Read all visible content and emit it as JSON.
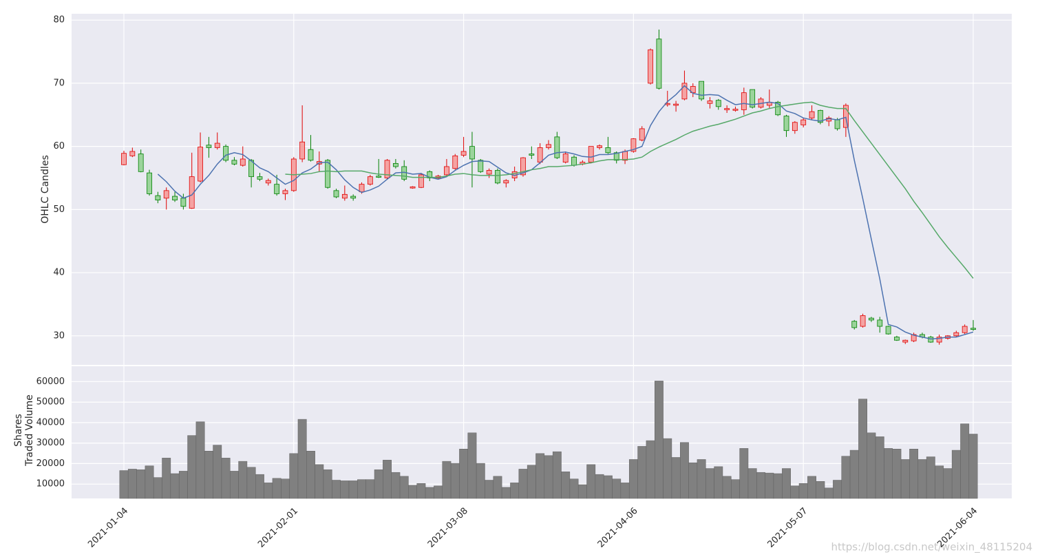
{
  "chart_data": {
    "type": "candlestick",
    "ylabel": "OHLC Candles",
    "volume_ylabel": [
      "Shares",
      "Traded Volume"
    ],
    "watermark": "https://blog.csdn.net/weixin_48115204",
    "categories": [
      "2021-01-04",
      null,
      null,
      null,
      null,
      null,
      null,
      null,
      null,
      null,
      null,
      null,
      null,
      null,
      null,
      null,
      null,
      null,
      null,
      null,
      "2021-02-01",
      null,
      null,
      null,
      null,
      null,
      null,
      null,
      null,
      null,
      null,
      null,
      null,
      null,
      null,
      null,
      null,
      null,
      null,
      null,
      "2021-03-08",
      null,
      null,
      null,
      null,
      null,
      null,
      null,
      null,
      null,
      null,
      null,
      null,
      null,
      null,
      null,
      null,
      null,
      null,
      null,
      "2021-04-06",
      null,
      null,
      null,
      null,
      null,
      null,
      null,
      null,
      null,
      null,
      null,
      null,
      null,
      null,
      null,
      null,
      null,
      null,
      null,
      "2021-05-07",
      null,
      null,
      null,
      null,
      null,
      null,
      null,
      null,
      null,
      null,
      null,
      null,
      null,
      null,
      null,
      null,
      null,
      null,
      null,
      "2021-06-04"
    ],
    "open": [
      57.1,
      58.5,
      58.8,
      55.8,
      52.2,
      51.8,
      52.1,
      51.8,
      50.2,
      54.5,
      60.2,
      59.8,
      60,
      57.8,
      57,
      57.8,
      55.2,
      54.2,
      54,
      52.5,
      53,
      58,
      59.5,
      57.2,
      57.8,
      53,
      51.8,
      52.1,
      52.8,
      54,
      55.3,
      55,
      57.3,
      56.8,
      53.4,
      53.5,
      56,
      55,
      55.5,
      56.5,
      58.6,
      60,
      57.8,
      55.6,
      56.2,
      54.2,
      55,
      55.5,
      58.8,
      57.5,
      59.8,
      61.5,
      57.5,
      58.3,
      57.2,
      57.5,
      59.8,
      59.8,
      59,
      57.8,
      59.2,
      61,
      70,
      77,
      66.6,
      66.5,
      67.5,
      68.5,
      70.3,
      66.8,
      67.3,
      65.8,
      65.7,
      65.8,
      69,
      66.2,
      66.5,
      67,
      64.8,
      62.5,
      63.4,
      64.5,
      65.7,
      64,
      64.2,
      63,
      32.3,
      31.5,
      32.8,
      32.5,
      31.5,
      29.8,
      29,
      29.2,
      30.2,
      29.8,
      29,
      29.6,
      30,
      30.5,
      31.2
    ],
    "high": [
      59.3,
      59.8,
      59.5,
      56.3,
      52.8,
      53.5,
      52.8,
      52.5,
      59,
      62.2,
      61.5,
      62.2,
      60.3,
      58.3,
      60,
      58,
      55.8,
      54.9,
      55.5,
      53.3,
      58.3,
      66.5,
      61.8,
      59.2,
      58,
      53.3,
      53.8,
      52.4,
      54.3,
      55.5,
      58,
      58,
      58,
      57.8,
      53.7,
      55.8,
      56.2,
      55.5,
      58,
      58.8,
      61.5,
      62.3,
      58,
      56.5,
      56.5,
      54.8,
      56.8,
      58.3,
      60,
      60.5,
      61,
      62.3,
      59.2,
      58.6,
      57.8,
      60,
      60.3,
      61.5,
      59.2,
      59.5,
      61.3,
      63.2,
      75.5,
      78.5,
      68.8,
      67.2,
      72,
      70,
      70.3,
      67.8,
      67.5,
      66.5,
      66.3,
      69.3,
      69,
      67.8,
      69,
      67.2,
      65,
      64,
      64.5,
      66.5,
      65.8,
      64.8,
      64.5,
      66.8,
      32.5,
      33.5,
      33,
      33,
      31.6,
      30,
      29.4,
      30.5,
      30.5,
      30,
      30.2,
      30.1,
      30.8,
      31.8,
      32.5
    ],
    "low": [
      57,
      58.3,
      55.9,
      52.2,
      51,
      50,
      51.2,
      50,
      50.1,
      54.3,
      58.2,
      59.5,
      57.5,
      57,
      56.8,
      53.5,
      54.5,
      53.8,
      52.2,
      51.5,
      52.8,
      57.5,
      57.6,
      56,
      53.3,
      51.8,
      51.4,
      51.4,
      52.5,
      53.8,
      55,
      54.8,
      56.5,
      54.5,
      53.3,
      53.4,
      54.5,
      54.8,
      55.3,
      56.3,
      58.3,
      53.5,
      55.8,
      55,
      54,
      53.5,
      54.5,
      55.2,
      58,
      57.2,
      59.5,
      58,
      57.3,
      56.8,
      57,
      57.3,
      59.5,
      58.8,
      57.3,
      57.2,
      59,
      60.8,
      69.8,
      69,
      66.3,
      65.5,
      67.3,
      67.8,
      67.2,
      66,
      65.8,
      65.3,
      65.5,
      65,
      66,
      66,
      66,
      64.8,
      61.5,
      62,
      63,
      64.2,
      63.5,
      63.2,
      62.5,
      61.5,
      31,
      31.3,
      32.2,
      30.5,
      30.2,
      29.2,
      28.7,
      29,
      29.6,
      28.9,
      28.6,
      29.4,
      29.8,
      30.3,
      30.8
    ],
    "close": [
      58.9,
      59.2,
      56,
      52.5,
      51.5,
      53,
      51.5,
      50.5,
      55.2,
      59.9,
      59.8,
      60.5,
      57.8,
      57.2,
      58,
      55.2,
      54.8,
      54.6,
      52.5,
      53,
      58,
      60.7,
      57.8,
      57.6,
      53.5,
      52,
      52.4,
      51.8,
      54,
      55.2,
      55.1,
      57.8,
      56.8,
      54.8,
      53.6,
      55.5,
      55,
      55.3,
      56.8,
      58.5,
      59.2,
      58,
      56,
      56.2,
      54.2,
      54.6,
      56,
      58.2,
      58.6,
      59.8,
      60.3,
      58.2,
      58.8,
      57,
      57.5,
      60,
      60.1,
      59,
      57.8,
      59.2,
      61.2,
      62.8,
      75.3,
      69.2,
      66.8,
      66.7,
      70,
      69.5,
      67.5,
      67.2,
      66.3,
      66,
      65.9,
      68.5,
      66.2,
      67.5,
      67,
      65,
      62.5,
      63.8,
      64.2,
      65.5,
      63.8,
      64.5,
      62.8,
      66.5,
      31.3,
      33.2,
      32.5,
      31.5,
      30.3,
      29.3,
      29.3,
      30.2,
      29.8,
      29,
      29.8,
      30,
      30.5,
      31.5,
      31
    ],
    "volume": [
      16600,
      17300,
      17000,
      18900,
      13200,
      22700,
      15100,
      16300,
      33700,
      40400,
      26100,
      29000,
      22700,
      16300,
      21100,
      18200,
      14700,
      10600,
      12800,
      12500,
      24900,
      41600,
      26100,
      19500,
      17000,
      11900,
      11600,
      11600,
      12200,
      12200,
      17000,
      21700,
      15700,
      13800,
      9400,
      10300,
      8400,
      9100,
      21100,
      20100,
      27100,
      35000,
      20100,
      11900,
      13800,
      8400,
      10600,
      17300,
      19200,
      24900,
      23900,
      25800,
      16000,
      12500,
      9700,
      19500,
      14700,
      14100,
      12500,
      10600,
      22000,
      28400,
      31200,
      60300,
      32200,
      23000,
      30300,
      20400,
      22000,
      17600,
      18500,
      13800,
      12200,
      27400,
      17600,
      15700,
      15400,
      15100,
      17600,
      9100,
      10300,
      13800,
      11300,
      8100,
      11900,
      23600,
      26500,
      51500,
      35000,
      33100,
      27400,
      27100,
      22000,
      27100,
      22000,
      23300,
      18900,
      17600,
      26500,
      39400,
      34400
    ],
    "series": [
      {
        "color": "#4c72b0",
        "values": [
          null,
          null,
          null,
          null,
          55.6,
          54.4,
          52.9,
          51.8,
          52.3,
          54.0,
          55.4,
          57.2,
          58.6,
          59.0,
          58.7,
          57.7,
          56.6,
          56.0,
          55.0,
          54.0,
          54.6,
          55.8,
          56.4,
          57.4,
          57.5,
          56.3,
          54.7,
          53.5,
          52.7,
          53.1,
          53.7,
          54.8,
          55.8,
          55.9,
          55.6,
          55.7,
          55.1,
          54.8,
          55.2,
          56.2,
          57.0,
          57.6,
          57.7,
          57.6,
          56.7,
          55.8,
          55.4,
          55.8,
          56.3,
          57.4,
          58.6,
          59.0,
          59.1,
          58.8,
          58.4,
          58.3,
          58.7,
          58.7,
          58.9,
          59.2,
          59.5,
          60.0,
          63.3,
          65.5,
          67.1,
          68.2,
          69.6,
          68.4,
          68.1,
          68.2,
          68.1,
          67.3,
          66.6,
          66.8,
          66.6,
          66.8,
          67.0,
          66.8,
          65.6,
          65.2,
          64.5,
          64.2,
          64.0,
          64.4,
          64.2,
          64.6,
          57.8,
          51.7,
          45.3,
          39.0,
          31.8,
          31.4,
          30.6,
          30.1,
          29.8,
          29.5,
          29.6,
          29.8,
          29.8,
          30.2,
          30.6
        ]
      },
      {
        "color": "#55a868",
        "values": [
          null,
          null,
          null,
          null,
          null,
          null,
          null,
          null,
          null,
          null,
          null,
          null,
          null,
          null,
          null,
          null,
          null,
          null,
          null,
          55.6,
          55.5,
          55.6,
          55.7,
          56.0,
          56.1,
          56.0,
          56.1,
          56.1,
          56.1,
          55.8,
          55.6,
          55.5,
          55.4,
          55.3,
          55.1,
          55.1,
          55.1,
          55.1,
          55.3,
          55.6,
          55.7,
          55.5,
          55.4,
          55.4,
          55.4,
          55.5,
          55.7,
          56.0,
          56.3,
          56.5,
          56.8,
          56.8,
          56.9,
          57.0,
          57.2,
          57.4,
          57.7,
          57.9,
          57.9,
          57.9,
          58.0,
          58.3,
          59.2,
          59.9,
          60.5,
          61.1,
          61.8,
          62.4,
          62.8,
          63.2,
          63.5,
          63.9,
          64.3,
          64.8,
          65.3,
          65.6,
          66.0,
          66.3,
          66.5,
          66.7,
          66.9,
          67.0,
          66.5,
          66.2,
          66.0,
          66.0,
          64.1,
          62.3,
          60.5,
          58.7,
          56.9,
          55.1,
          53.3,
          51.3,
          49.5,
          47.6,
          45.7,
          44.0,
          42.4,
          40.8,
          39.1
        ]
      }
    ],
    "up_color": {
      "fill": "#f5a3a3",
      "edge": "#e00000"
    },
    "down_color": {
      "fill": "#9bd49b",
      "edge": "#008000"
    },
    "volume_color": {
      "fill": "#808080",
      "edge": "#606060"
    },
    "ylim": [
      25.4,
      81
    ],
    "yticks": [
      30,
      40,
      50,
      60,
      70,
      80
    ],
    "volume_ylim": [
      3000,
      67500
    ],
    "volume_yticks": [
      10000,
      20000,
      30000,
      40000,
      50000,
      60000
    ],
    "grid": true
  }
}
